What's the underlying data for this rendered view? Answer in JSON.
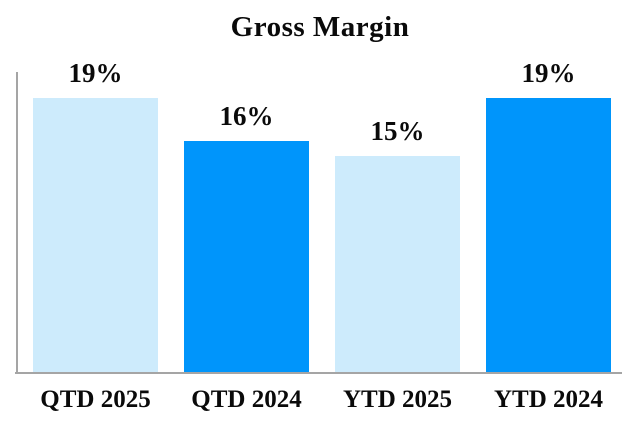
{
  "chart_data": {
    "type": "bar",
    "title": "Gross Margin",
    "categories": [
      "QTD 2025",
      "QTD 2024",
      "YTD 2025",
      "YTD 2024"
    ],
    "values": [
      19,
      16,
      15,
      19
    ],
    "data_labels": [
      "19%",
      "16%",
      "15%",
      "19%"
    ],
    "bar_colors": [
      "#cdebfc",
      "#0095fb",
      "#cdebfc",
      "#0095fb"
    ],
    "xlabel": "",
    "ylabel": "",
    "ylim": [
      0,
      21
    ],
    "grid": false,
    "legend": "none",
    "axis_color": "#a5a5a5"
  }
}
